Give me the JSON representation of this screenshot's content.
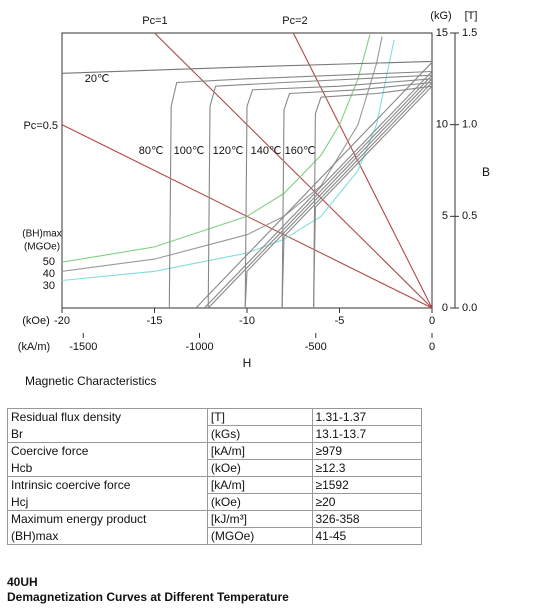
{
  "chart_data": {
    "type": "line",
    "x_label": "H",
    "y_label": "B",
    "x_unit": "(kOe)",
    "x2_unit": "(kA/m)",
    "y_unit": "(kG)",
    "y2_unit": "[T]",
    "bh_label": [
      "(BH)max",
      "(MGOe)"
    ],
    "xlim": [
      -20,
      0
    ],
    "xticks": [
      -20,
      -15,
      -10,
      -5,
      0
    ],
    "x2lim": [
      -1591.5,
      0
    ],
    "x2ticks": [
      -1500,
      -1000,
      -500,
      0
    ],
    "ylim": [
      0,
      15
    ],
    "yticks": [
      0,
      5,
      10,
      15
    ],
    "y2lim": [
      0,
      1.5
    ],
    "y2ticks": [
      {
        "value": 0,
        "label": "0.0"
      },
      0.5,
      {
        "value": 1,
        "label": "1.0"
      },
      1.5
    ],
    "series": [
      {
        "name": "Pc=1",
        "color": "#b04848",
        "x": [
          -15,
          0
        ],
        "values": [
          15,
          0
        ]
      },
      {
        "name": "Pc=2",
        "color": "#b04848",
        "x": [
          -7.5,
          0
        ],
        "values": [
          15,
          0
        ]
      },
      {
        "name": "Pc=0.5",
        "color": "#b04848",
        "x": [
          -20,
          0
        ],
        "values": [
          10,
          0
        ]
      },
      {
        "name": "50",
        "color": "#80d080",
        "x": [
          -20,
          -15,
          -10,
          -8,
          -6,
          -5,
          -4,
          -3.35
        ],
        "values": [
          2.5,
          3.33,
          5,
          6.25,
          8.33,
          10,
          12.5,
          14.93
        ]
      },
      {
        "name": "40",
        "color": "#999999",
        "x": [
          -20,
          -15,
          -10,
          -8,
          -6,
          -4,
          -3,
          -2.7
        ],
        "values": [
          2,
          2.67,
          4,
          5,
          6.67,
          10,
          13.33,
          14.81
        ]
      },
      {
        "name": "30",
        "color": "#80dede",
        "x": [
          -20,
          -15,
          -10,
          -8,
          -6,
          -4,
          -3,
          -2.05
        ],
        "values": [
          1.5,
          2,
          3,
          3.75,
          5,
          7.5,
          10,
          14.63
        ]
      },
      {
        "name": "20℃",
        "color": "#777777",
        "x": [
          -20,
          -10,
          0
        ],
        "values": [
          12.8,
          13.15,
          13.45
        ]
      },
      {
        "name": "80℃",
        "color": "#888888",
        "x": [
          -14.2,
          -14.1,
          -13.8,
          -10,
          0
        ],
        "values": [
          0,
          11,
          12.3,
          12.5,
          12.9
        ]
      },
      {
        "name": "100℃",
        "color": "#888888",
        "x": [
          -12.1,
          -12,
          -11.7,
          -8,
          0
        ],
        "values": [
          0,
          11,
          12.1,
          12.3,
          12.7
        ]
      },
      {
        "name": "120℃",
        "color": "#888888",
        "x": [
          -10.1,
          -10,
          -9.7,
          -5,
          0
        ],
        "values": [
          0,
          11,
          11.9,
          12.1,
          12.5
        ]
      },
      {
        "name": "140℃",
        "color": "#888888",
        "x": [
          -8.1,
          -8,
          -7.7,
          -4,
          0
        ],
        "values": [
          0,
          10.8,
          11.7,
          11.9,
          12.3
        ]
      },
      {
        "name": "160℃",
        "color": "#888888",
        "x": [
          -6.4,
          -6.3,
          -6,
          -3,
          0
        ],
        "values": [
          0,
          10.6,
          11.5,
          11.7,
          12.1
        ]
      },
      {
        "color": "#888888",
        "x": [
          -12.76,
          0
        ],
        "values": [
          0,
          13.4
        ]
      },
      {
        "color": "#888888",
        "x": [
          -12.3,
          0
        ],
        "values": [
          0,
          12.9
        ]
      },
      {
        "color": "#888888",
        "x": [
          -12.1,
          0
        ],
        "values": [
          0,
          12.7
        ]
      },
      {
        "color": "#888888",
        "x": [
          -10.1,
          -10,
          0
        ],
        "values": [
          0,
          2,
          12.5
        ]
      },
      {
        "color": "#888888",
        "x": [
          -8.1,
          -8,
          0
        ],
        "values": [
          0,
          3.9,
          12.3
        ]
      },
      {
        "color": "#888888",
        "x": [
          -6.4,
          -6.3,
          0
        ],
        "values": [
          0,
          5.5,
          12.1
        ]
      }
    ]
  },
  "section_title": "Magnetic Characteristics",
  "table": {
    "rows": [
      [
        "Residual flux density",
        "[T]",
        "1.31-1.37"
      ],
      [
        "Br",
        "(kGs)",
        "13.1-13.7"
      ],
      [
        "Coercive force",
        "[kA/m]",
        "≥979"
      ],
      [
        "Hcb",
        "(kOe)",
        "≥12.3"
      ],
      [
        "Intrinsic coercive force",
        "[kA/m]",
        "≥1592"
      ],
      [
        "Hcj",
        "(kOe)",
        "≥20"
      ],
      [
        "Maximum energy product",
        "[kJ/m³]",
        "326-358"
      ],
      [
        "(BH)max",
        "(MGOe)",
        "41-45"
      ]
    ]
  },
  "footer": {
    "grade": "40UH",
    "caption": "Demagnetization Curves at Different Temperature"
  }
}
